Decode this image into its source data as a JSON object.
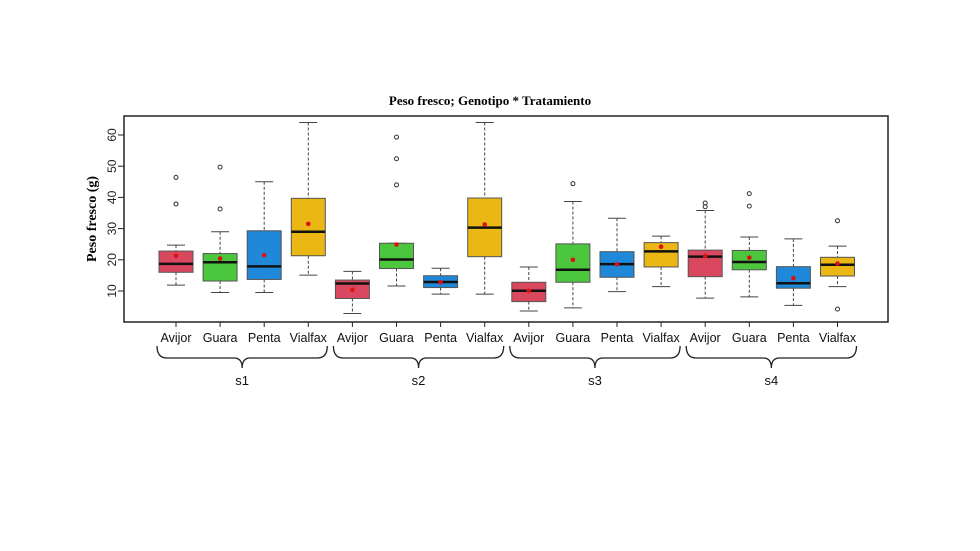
{
  "chart_data": {
    "type": "boxplot",
    "title": "Peso fresco; Genotipo * Tratamiento",
    "xlabel": "",
    "ylabel": "Peso fresco (g)",
    "ylim": [
      0,
      65
    ],
    "yticks": [
      10,
      20,
      30,
      40,
      50,
      60
    ],
    "grid": false,
    "legend": "none",
    "colors": {
      "Avijor": "#d9485f",
      "Guara": "#4cc63c",
      "Penta": "#2088d8",
      "Vialfax": "#ebb714",
      "mean": "#dd1111"
    },
    "groups": [
      {
        "label": "s1",
        "boxes": [
          {
            "category": "Avijor",
            "whisker_low": 11.9,
            "q1": 16.0,
            "median": 18.7,
            "q3": 22.8,
            "whisker_high": 24.7,
            "mean": 21.3,
            "outliers": [
              37.9,
              46.4
            ]
          },
          {
            "category": "Guara",
            "whisker_low": 9.5,
            "q1": 13.2,
            "median": 19.2,
            "q3": 22.0,
            "whisker_high": 29.0,
            "mean": 20.4,
            "outliers": [
              36.3,
              49.7
            ]
          },
          {
            "category": "Penta",
            "whisker_low": 9.5,
            "q1": 13.7,
            "median": 17.9,
            "q3": 29.3,
            "whisker_high": 45.0,
            "mean": 21.5,
            "outliers": []
          },
          {
            "category": "Vialfax",
            "whisker_low": 15.1,
            "q1": 21.3,
            "median": 29.0,
            "q3": 39.7,
            "whisker_high": 64.0,
            "mean": 31.5,
            "outliers": []
          }
        ]
      },
      {
        "label": "s2",
        "boxes": [
          {
            "category": "Avijor",
            "whisker_low": 2.8,
            "q1": 7.6,
            "median": 12.4,
            "q3": 13.5,
            "whisker_high": 16.3,
            "mean": 10.4,
            "outliers": []
          },
          {
            "category": "Guara",
            "whisker_low": 11.6,
            "q1": 17.2,
            "median": 20.1,
            "q3": 25.3,
            "whisker_high": 25.3,
            "mean": 24.9,
            "outliers": [
              44.0,
              52.4,
              59.3
            ]
          },
          {
            "category": "Penta",
            "whisker_low": 9.0,
            "q1": 11.1,
            "median": 12.9,
            "q3": 14.9,
            "whisker_high": 17.3,
            "mean": 12.8,
            "outliers": []
          },
          {
            "category": "Vialfax",
            "whisker_low": 9.0,
            "q1": 21.0,
            "median": 30.3,
            "q3": 39.8,
            "whisker_high": 64.0,
            "mean": 31.3,
            "outliers": []
          }
        ]
      },
      {
        "label": "s3",
        "boxes": [
          {
            "category": "Avijor",
            "whisker_low": 3.6,
            "q1": 6.6,
            "median": 10.1,
            "q3": 12.8,
            "whisker_high": 17.7,
            "mean": 10.1,
            "outliers": []
          },
          {
            "category": "Guara",
            "whisker_low": 4.6,
            "q1": 12.8,
            "median": 16.8,
            "q3": 25.1,
            "whisker_high": 38.7,
            "mean": 20.0,
            "outliers": [
              44.4
            ]
          },
          {
            "category": "Penta",
            "whisker_low": 9.8,
            "q1": 14.4,
            "median": 18.6,
            "q3": 22.6,
            "whisker_high": 33.3,
            "mean": 18.6,
            "outliers": []
          },
          {
            "category": "Vialfax",
            "whisker_low": 11.4,
            "q1": 17.7,
            "median": 22.7,
            "q3": 25.5,
            "whisker_high": 27.6,
            "mean": 24.2,
            "outliers": []
          }
        ]
      },
      {
        "label": "s4",
        "boxes": [
          {
            "category": "Avijor",
            "whisker_low": 7.7,
            "q1": 14.6,
            "median": 21.0,
            "q3": 23.1,
            "whisker_high": 35.8,
            "mean": 21.2,
            "outliers": [
              37.0,
              38.2
            ]
          },
          {
            "category": "Guara",
            "whisker_low": 8.1,
            "q1": 16.8,
            "median": 19.3,
            "q3": 23.0,
            "whisker_high": 27.3,
            "mean": 20.7,
            "outliers": [
              37.2,
              41.2
            ]
          },
          {
            "category": "Penta",
            "whisker_low": 5.4,
            "q1": 10.9,
            "median": 12.5,
            "q3": 17.8,
            "whisker_high": 26.7,
            "mean": 14.1,
            "outliers": []
          },
          {
            "category": "Vialfax",
            "whisker_low": 11.4,
            "q1": 14.8,
            "median": 18.4,
            "q3": 20.8,
            "whisker_high": 24.4,
            "mean": 18.8,
            "outliers": [
              4.2,
              32.5
            ]
          }
        ]
      }
    ]
  }
}
